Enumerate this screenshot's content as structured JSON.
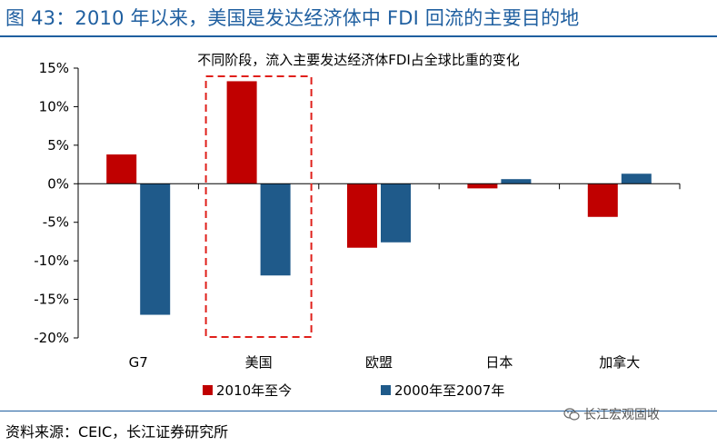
{
  "figure": {
    "title": "图 43：2010 年以来，美国是发达经济体中 FDI 回流的主要目的地",
    "source": "资料来源：CEIC，长江证券研究所",
    "watermark": "长江宏观固收"
  },
  "colors": {
    "title": "#1f5fa0",
    "series1": "#c00000",
    "series2": "#1f5a8a",
    "highlight": "#e0201b"
  },
  "icons": {
    "watermark": "wechat-icon"
  },
  "chart_data": {
    "type": "bar",
    "title": "不同阶段，流入主要发达经济体FDI占全球比重的变化",
    "categories": [
      "G7",
      "美国",
      "欧盟",
      "日本",
      "加拿大"
    ],
    "series": [
      {
        "name": "2010年至今",
        "values": [
          3.8,
          13.3,
          -8.3,
          -0.6,
          -4.3
        ]
      },
      {
        "name": "2000年至2007年",
        "values": [
          -17.0,
          -11.9,
          -7.6,
          0.6,
          1.3
        ]
      }
    ],
    "ylim": [
      -20,
      15
    ],
    "yticks": [
      15,
      10,
      5,
      0,
      -5,
      -10,
      -15,
      -20
    ],
    "ytick_labels": [
      "15%",
      "10%",
      "5%",
      "0%",
      "-5%",
      "-10%",
      "-15%",
      "-20%"
    ],
    "highlight_category": "美国",
    "legend_position": "bottom",
    "xlabel": "",
    "ylabel": ""
  }
}
